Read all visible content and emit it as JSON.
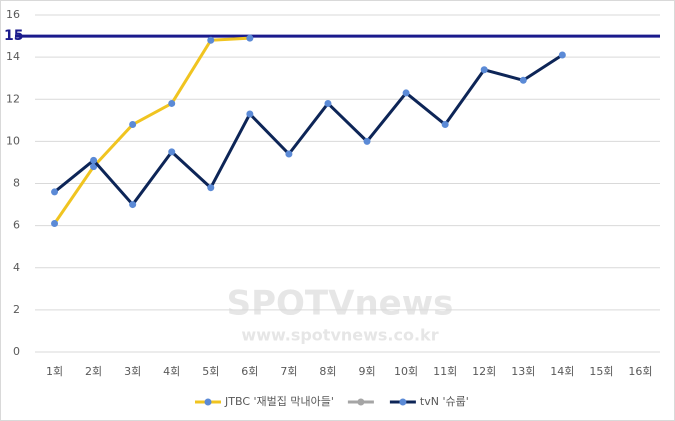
{
  "chart_data": {
    "type": "line",
    "categories": [
      "1회",
      "2회",
      "3회",
      "4회",
      "5회",
      "6회",
      "7회",
      "8회",
      "9회",
      "10회",
      "11회",
      "12회",
      "13회",
      "14회",
      "15회",
      "16회"
    ],
    "series": [
      {
        "name": "JTBC '재벌집 막내아들'",
        "color": "#f0c420",
        "values": [
          6.1,
          8.8,
          10.8,
          11.8,
          14.8,
          14.9,
          null,
          null,
          null,
          null,
          null,
          null,
          null,
          null,
          null,
          null
        ]
      },
      {
        "color": "#a5a5a5",
        "values": [
          null,
          null,
          null,
          null,
          null,
          null,
          null,
          null,
          null,
          null,
          null,
          null,
          null,
          null,
          null,
          null
        ]
      },
      {
        "name": "tvN '슈룹'",
        "color": "#0d2557",
        "values": [
          7.6,
          9.1,
          7.0,
          9.5,
          7.8,
          11.3,
          9.4,
          11.8,
          10.0,
          12.3,
          10.8,
          13.4,
          12.9,
          14.1,
          null,
          null
        ]
      }
    ],
    "marker_color": "#5b8ad6",
    "reference_line": {
      "value": 15,
      "color": "#1a1a8c"
    },
    "ylim": [
      0,
      16
    ],
    "yticks": [
      0,
      2,
      4,
      6,
      8,
      10,
      12,
      14,
      16
    ],
    "grid": true,
    "legend": "bottom",
    "watermark": [
      "SPOTVnews",
      "www.spotvnews.co.kr"
    ]
  }
}
